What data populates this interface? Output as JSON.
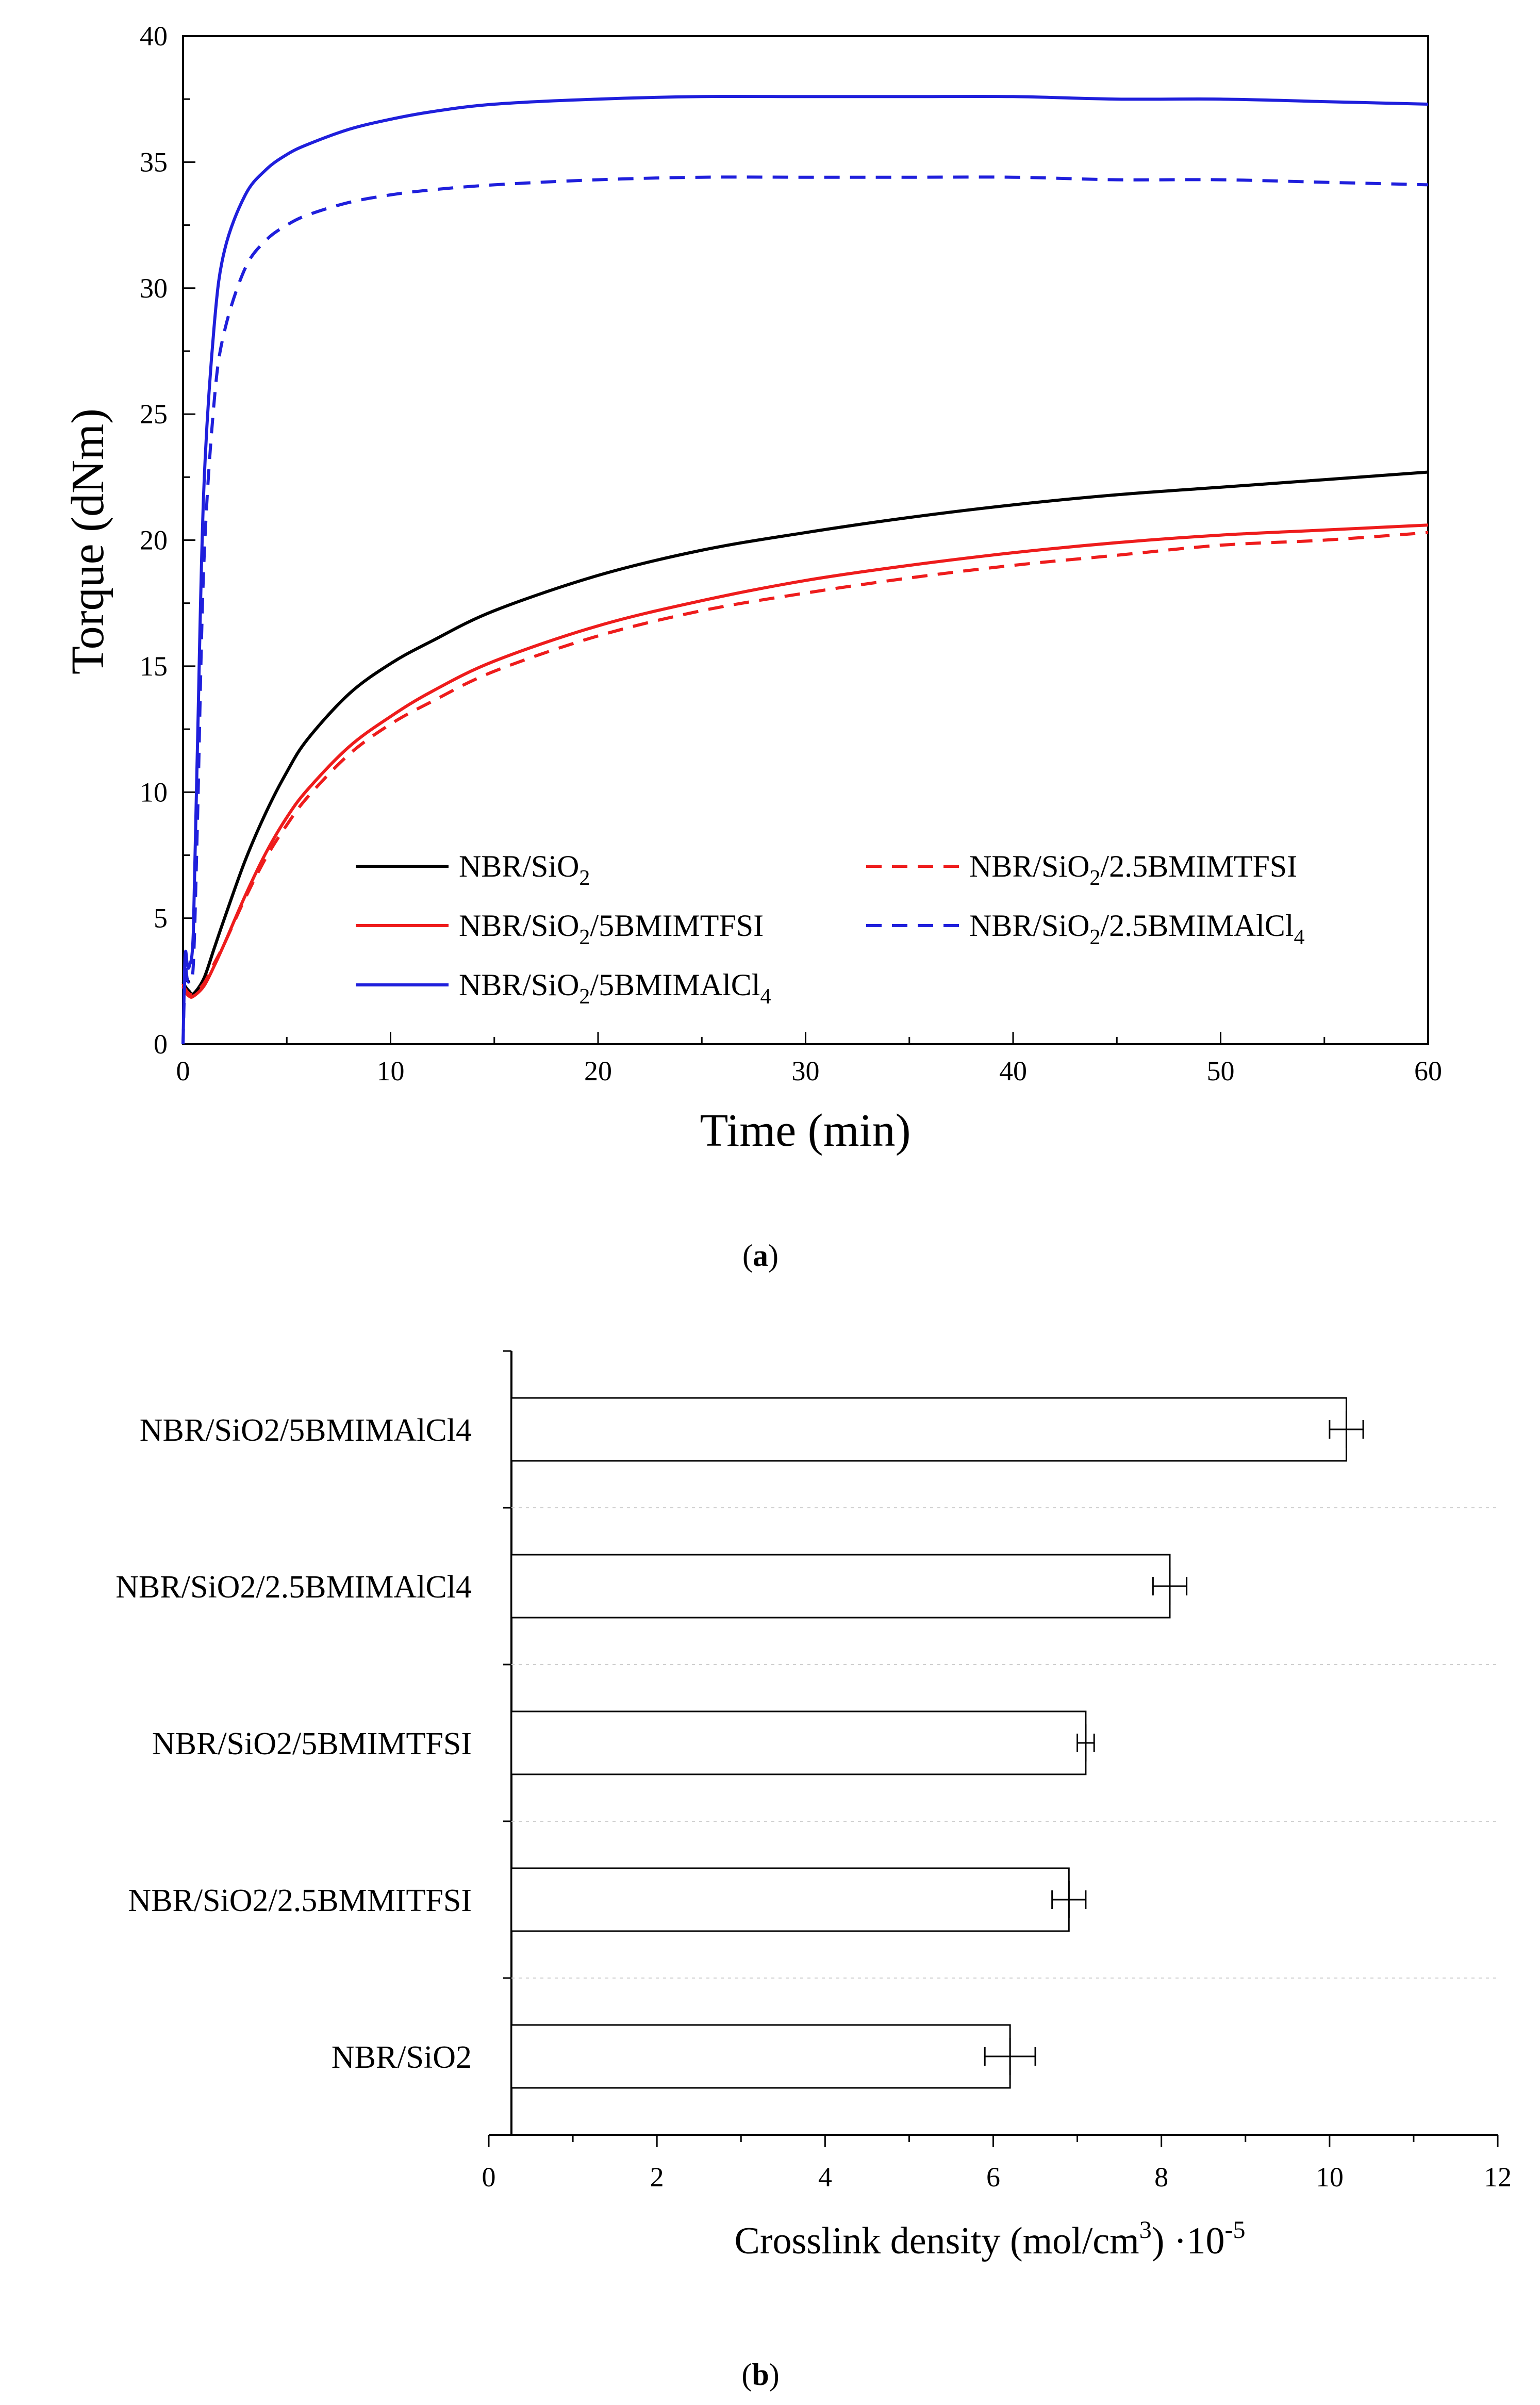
{
  "chart_data": [
    {
      "type": "line",
      "panel_label": "a",
      "xlabel": "Time (min)",
      "ylabel": "Torque (dNm)",
      "xlim": [
        0,
        60
      ],
      "ylim": [
        0,
        40
      ],
      "xticks": [
        "0",
        "10",
        "20",
        "30",
        "40",
        "50",
        "60"
      ],
      "yticks": [
        "0",
        "5",
        "10",
        "15",
        "20",
        "25",
        "30",
        "35",
        "40"
      ],
      "legend_position": "lower-center",
      "series": [
        {
          "name": "NBR/SiO2",
          "name_main": "NBR/SiO",
          "name_sub": "2",
          "name_after": "",
          "color": "#000000",
          "dash": "solid",
          "x": [
            0,
            0.1,
            0.3,
            0.5,
            1,
            1.5,
            2,
            3,
            4,
            5,
            6,
            8,
            10,
            12,
            15,
            20,
            25,
            30,
            35,
            40,
            45,
            50,
            55,
            60
          ],
          "y": [
            2.5,
            2.3,
            2.1,
            2.0,
            2.6,
            3.8,
            5.0,
            7.3,
            9.2,
            10.8,
            12.1,
            13.9,
            15.1,
            16.0,
            17.2,
            18.6,
            19.6,
            20.3,
            20.9,
            21.4,
            21.8,
            22.1,
            22.4,
            22.7
          ]
        },
        {
          "name": "NBR/SiO2/5BMIMTFSI",
          "name_main": "NBR/SiO",
          "name_sub": "2",
          "name_after": "/5BMIMTFSI",
          "color": "#ee1c1c",
          "dash": "solid",
          "x": [
            0,
            0.1,
            0.3,
            0.5,
            1,
            1.5,
            2,
            3,
            4,
            5,
            6,
            8,
            10,
            12,
            15,
            20,
            25,
            30,
            35,
            40,
            45,
            50,
            55,
            60
          ],
          "y": [
            2.3,
            2.1,
            1.9,
            1.9,
            2.3,
            3.1,
            4.0,
            5.9,
            7.6,
            9.0,
            10.1,
            11.8,
            13.0,
            14.0,
            15.2,
            16.6,
            17.6,
            18.4,
            19.0,
            19.5,
            19.9,
            20.2,
            20.4,
            20.6
          ]
        },
        {
          "name": "NBR/SiO2/5BMIMAlCl4",
          "name_main": "NBR/SiO",
          "name_sub": "2",
          "name_after": "/5BMIMAlCl",
          "name_sub2": "4",
          "color": "#1f1fdc",
          "dash": "solid",
          "x": [
            0,
            0.1,
            0.2,
            0.3,
            0.5,
            0.7,
            1,
            1.5,
            2,
            3,
            4,
            5,
            6,
            8,
            10,
            12,
            15,
            20,
            25,
            30,
            35,
            40,
            45,
            50,
            55,
            60
          ],
          "y": [
            0,
            3.5,
            3.2,
            3.1,
            4.5,
            12.0,
            22.0,
            28.5,
            31.5,
            33.7,
            34.7,
            35.3,
            35.7,
            36.3,
            36.7,
            37.0,
            37.3,
            37.5,
            37.6,
            37.6,
            37.6,
            37.6,
            37.5,
            37.5,
            37.4,
            37.3
          ]
        },
        {
          "name": "NBR/SiO2/2.5BMIMTFSI",
          "name_main": "NBR/SiO",
          "name_sub": "2",
          "name_after": "/2.5BMIMTFSI",
          "color": "#ee1c1c",
          "dash": "dashed",
          "x": [
            0,
            0.1,
            0.3,
            0.5,
            1,
            1.5,
            2,
            3,
            4,
            5,
            6,
            8,
            10,
            12,
            15,
            20,
            25,
            30,
            35,
            40,
            45,
            50,
            55,
            60
          ],
          "y": [
            2.4,
            2.2,
            2.0,
            2.0,
            2.4,
            3.2,
            4.0,
            5.8,
            7.4,
            8.7,
            9.8,
            11.5,
            12.7,
            13.6,
            14.8,
            16.2,
            17.2,
            17.9,
            18.5,
            19.0,
            19.4,
            19.8,
            20.0,
            20.3
          ]
        },
        {
          "name": "NBR/SiO2/2.5BMIMAlCl4",
          "name_main": "NBR/SiO",
          "name_sub": "2",
          "name_after": "/2.5BMIMAlCl",
          "name_sub2": "4",
          "color": "#1f1fdc",
          "dash": "dashed",
          "x": [
            0,
            0.1,
            0.2,
            0.3,
            0.5,
            0.7,
            1,
            1.5,
            2,
            3,
            4,
            5,
            6,
            8,
            10,
            12,
            15,
            20,
            25,
            30,
            35,
            40,
            45,
            50,
            55,
            60
          ],
          "y": [
            0,
            2.9,
            2.6,
            2.5,
            3.2,
            9.0,
            19.0,
            25.5,
            28.3,
            30.8,
            31.9,
            32.5,
            32.9,
            33.4,
            33.7,
            33.9,
            34.1,
            34.3,
            34.4,
            34.4,
            34.4,
            34.4,
            34.3,
            34.3,
            34.2,
            34.1
          ]
        }
      ]
    },
    {
      "type": "bar",
      "orientation": "horizontal",
      "panel_label": "b",
      "xlabel_main": "Crosslink density (mol/cm",
      "xlabel_sup": "3",
      "xlabel_mid": ") ·10",
      "xlabel_exp": "-5",
      "xlim": [
        0,
        12
      ],
      "xticks": [
        "0",
        "2",
        "4",
        "6",
        "8",
        "10",
        "12"
      ],
      "categories": [
        "NBR/SiO2/5BMIMAlCl4",
        "NBR/SiO2/2.5BMIMAlCl4",
        "NBR/SiO2/5BMIMTFSI",
        "NBR/SiO2/2.5BMMITFSI",
        "NBR/SiO2"
      ],
      "values": [
        10.2,
        8.1,
        7.1,
        6.9,
        6.2
      ],
      "errors": [
        0.2,
        0.2,
        0.1,
        0.2,
        0.3
      ]
    }
  ]
}
